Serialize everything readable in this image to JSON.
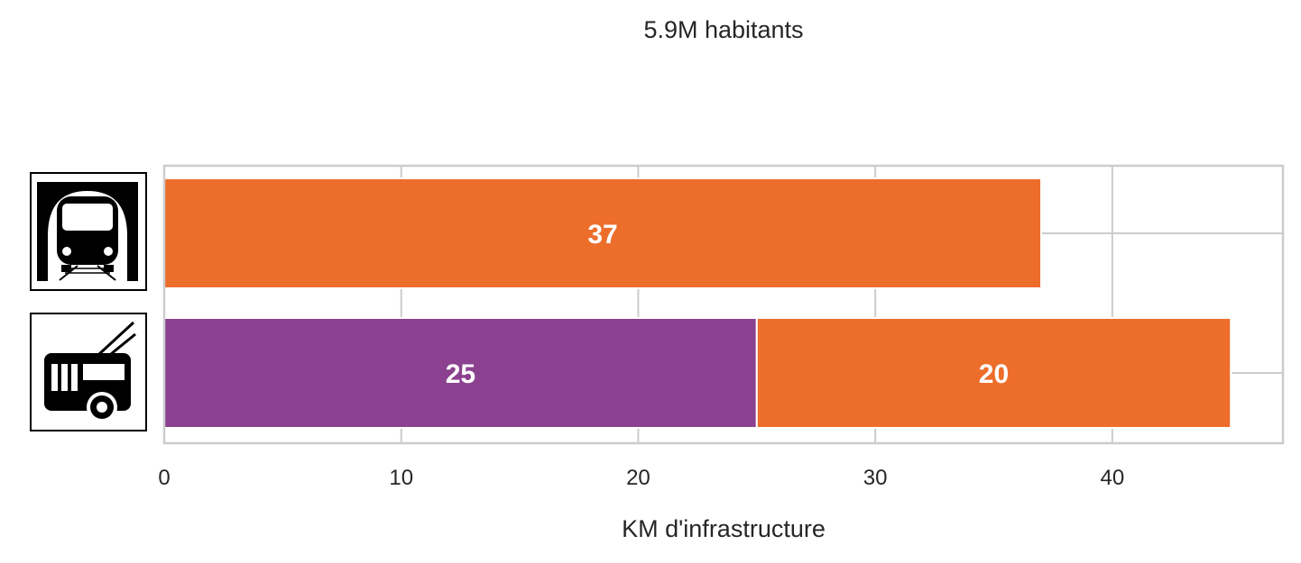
{
  "chart_data": {
    "type": "bar",
    "orientation": "horizontal",
    "stacked": true,
    "title": "5.9M habitants",
    "xlabel": "KM d'infrastructure",
    "ylabel": "",
    "xlim": [
      0,
      47.2
    ],
    "x_ticks": [
      0,
      10,
      20,
      30,
      40
    ],
    "grid": true,
    "categories": [
      {
        "name": "metro",
        "icon": "metro-icon"
      },
      {
        "name": "trolleybus",
        "icon": "trolleybus-icon"
      }
    ],
    "series": [
      {
        "color": "#8b418f",
        "values": [
          0,
          25
        ]
      },
      {
        "color": "#ed6d2b",
        "values": [
          37,
          20
        ]
      }
    ],
    "data_labels": [
      [
        "",
        "25"
      ],
      [
        "37",
        "20"
      ]
    ]
  }
}
